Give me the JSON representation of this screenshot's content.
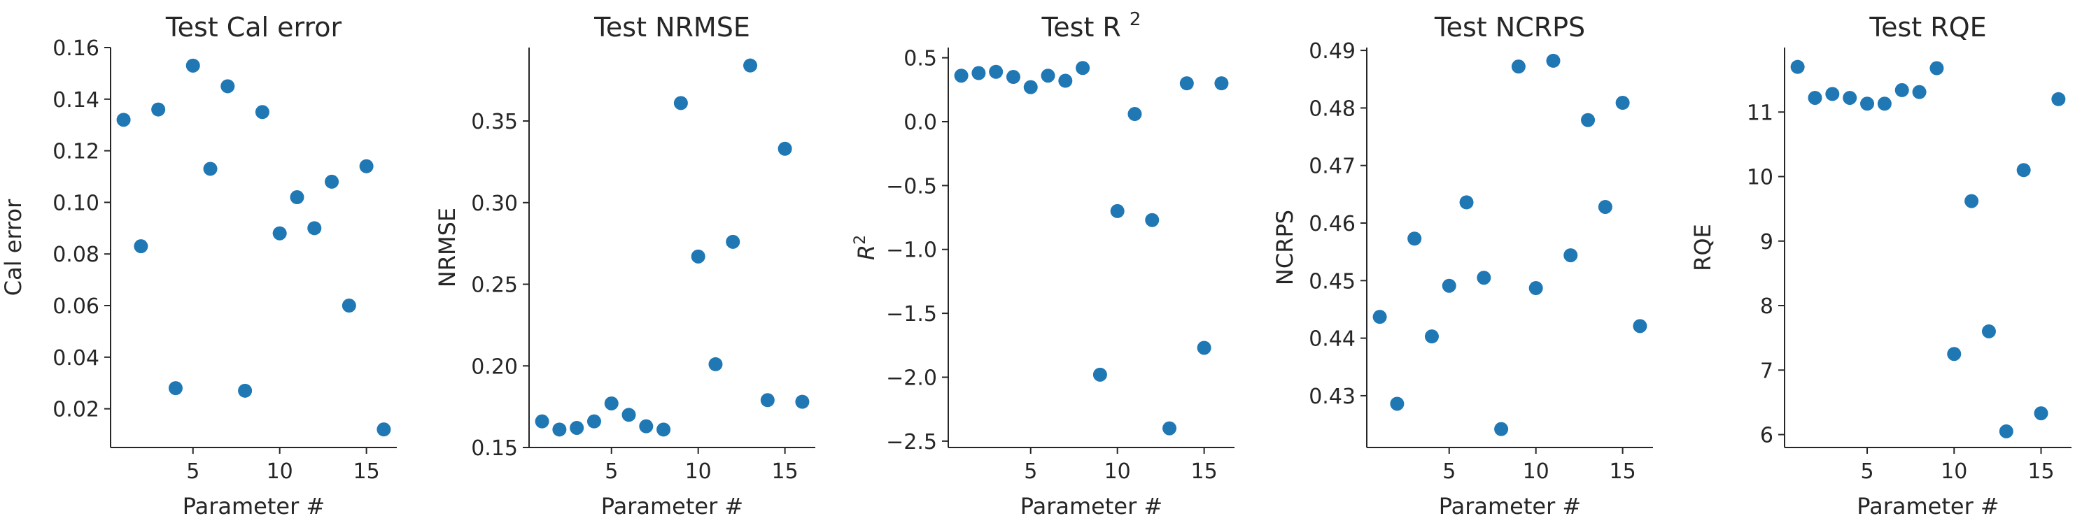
{
  "figure": {
    "marker_color": "#1f77b4",
    "axis_color": "#262626"
  },
  "chart_data": [
    {
      "type": "scatter",
      "title": "Test Cal error",
      "title_main": "Test Cal error",
      "title_sup": "",
      "xlabel": "Parameter #",
      "ylabel": "Cal error",
      "ylabel_sup": "",
      "xlim": [
        0.25,
        16.75
      ],
      "ylim": [
        0.005,
        0.16
      ],
      "xticks": [
        5,
        10,
        15
      ],
      "xtick_labels": [
        "5",
        "10",
        "15"
      ],
      "yticks": [
        0.02,
        0.04,
        0.06,
        0.08,
        0.1,
        0.12,
        0.14,
        0.16
      ],
      "ytick_labels": [
        "0.02",
        "0.04",
        "0.06",
        "0.08",
        "0.10",
        "0.12",
        "0.14",
        "0.16"
      ],
      "grid": false,
      "legend": "none",
      "x": [
        1,
        2,
        3,
        4,
        5,
        6,
        7,
        8,
        9,
        10,
        11,
        12,
        13,
        14,
        15,
        16
      ],
      "y": [
        0.132,
        0.083,
        0.136,
        0.028,
        0.153,
        0.113,
        0.145,
        0.027,
        0.135,
        0.088,
        0.102,
        0.09,
        0.108,
        0.06,
        0.114,
        0.012
      ]
    },
    {
      "type": "scatter",
      "title": "Test NRMSE",
      "title_main": "Test NRMSE",
      "title_sup": "",
      "xlabel": "Parameter #",
      "ylabel": "NRMSE",
      "ylabel_sup": "",
      "xlim": [
        0.25,
        16.75
      ],
      "ylim": [
        0.15,
        0.395
      ],
      "xticks": [
        5,
        10,
        15
      ],
      "xtick_labels": [
        "5",
        "10",
        "15"
      ],
      "yticks": [
        0.15,
        0.2,
        0.25,
        0.3,
        0.35
      ],
      "ytick_labels": [
        "0.15",
        "0.20",
        "0.25",
        "0.30",
        "0.35"
      ],
      "grid": false,
      "legend": "none",
      "x": [
        1,
        2,
        3,
        4,
        5,
        6,
        7,
        8,
        9,
        10,
        11,
        12,
        13,
        14,
        15,
        16
      ],
      "y": [
        0.166,
        0.161,
        0.162,
        0.166,
        0.177,
        0.17,
        0.163,
        0.161,
        0.361,
        0.267,
        0.201,
        0.276,
        0.384,
        0.179,
        0.333,
        0.178
      ]
    },
    {
      "type": "scatter",
      "title": "Test R^2",
      "title_main": "Test R",
      "title_sup": "2",
      "xlabel": "Parameter #",
      "ylabel": "R^2",
      "ylabel_sup": "2",
      "xlim": [
        0.25,
        16.75
      ],
      "ylim": [
        -2.55,
        0.58
      ],
      "xticks": [
        5,
        10,
        15
      ],
      "xtick_labels": [
        "5",
        "10",
        "15"
      ],
      "yticks": [
        -2.5,
        -2.0,
        -1.5,
        -1.0,
        -0.5,
        0.0,
        0.5
      ],
      "ytick_labels": [
        "−2.5",
        "−2.0",
        "−1.5",
        "−1.0",
        "−0.5",
        "0.0",
        "0.5"
      ],
      "grid": false,
      "legend": "none",
      "x": [
        1,
        2,
        3,
        4,
        5,
        6,
        7,
        8,
        9,
        10,
        11,
        12,
        13,
        14,
        15,
        16
      ],
      "y": [
        0.36,
        0.38,
        0.39,
        0.35,
        0.27,
        0.36,
        0.32,
        0.42,
        -1.98,
        -0.7,
        0.06,
        -0.77,
        -2.4,
        0.3,
        -1.77,
        0.3
      ]
    },
    {
      "type": "scatter",
      "title": "Test NCRPS",
      "title_main": "Test NCRPS",
      "title_sup": "",
      "xlabel": "Parameter #",
      "ylabel": "NCRPS",
      "ylabel_sup": "",
      "xlim": [
        0.25,
        16.75
      ],
      "ylim": [
        0.421,
        0.4905
      ],
      "xticks": [
        5,
        10,
        15
      ],
      "xtick_labels": [
        "5",
        "10",
        "15"
      ],
      "yticks": [
        0.43,
        0.44,
        0.45,
        0.46,
        0.47,
        0.48,
        0.49
      ],
      "ytick_labels": [
        "0.43",
        "0.44",
        "0.45",
        "0.46",
        "0.47",
        "0.48",
        "0.49"
      ],
      "grid": false,
      "legend": "none",
      "x": [
        1,
        2,
        3,
        4,
        5,
        6,
        7,
        8,
        9,
        10,
        11,
        12,
        13,
        14,
        15,
        16
      ],
      "y": [
        0.4437,
        0.4286,
        0.4573,
        0.4403,
        0.4491,
        0.4636,
        0.4505,
        0.4242,
        0.4872,
        0.4487,
        0.4882,
        0.4544,
        0.4779,
        0.4628,
        0.4809,
        0.4421
      ]
    },
    {
      "type": "scatter",
      "title": "Test RQE",
      "title_main": "Test RQE",
      "title_sup": "",
      "xlabel": "Parameter #",
      "ylabel": "RQE",
      "ylabel_sup": "",
      "xlim": [
        0.25,
        16.75
      ],
      "ylim": [
        5.8,
        12.0
      ],
      "xticks": [
        5,
        10,
        15
      ],
      "xtick_labels": [
        "5",
        "10",
        "15"
      ],
      "yticks": [
        6,
        7,
        8,
        9,
        10,
        11
      ],
      "ytick_labels": [
        "6",
        "7",
        "8",
        "9",
        "10",
        "11"
      ],
      "grid": false,
      "legend": "none",
      "x": [
        1,
        2,
        3,
        4,
        5,
        6,
        7,
        8,
        9,
        10,
        11,
        12,
        13,
        14,
        15,
        16
      ],
      "y": [
        11.7,
        11.22,
        11.28,
        11.22,
        11.13,
        11.13,
        11.34,
        11.31,
        11.68,
        7.25,
        9.62,
        7.6,
        6.05,
        10.1,
        6.33,
        11.2
      ]
    }
  ]
}
